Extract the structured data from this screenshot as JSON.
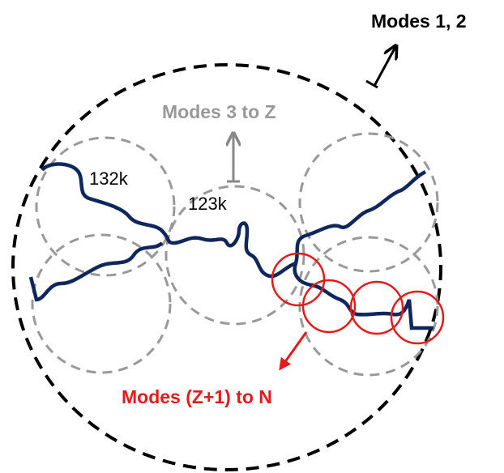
{
  "labels": {
    "outer": "Modes 1, 2",
    "middle": "Modes 3 to Z",
    "inner": "Modes (Z+1) to N",
    "left_value": "132k",
    "center_value": "123k"
  }
}
